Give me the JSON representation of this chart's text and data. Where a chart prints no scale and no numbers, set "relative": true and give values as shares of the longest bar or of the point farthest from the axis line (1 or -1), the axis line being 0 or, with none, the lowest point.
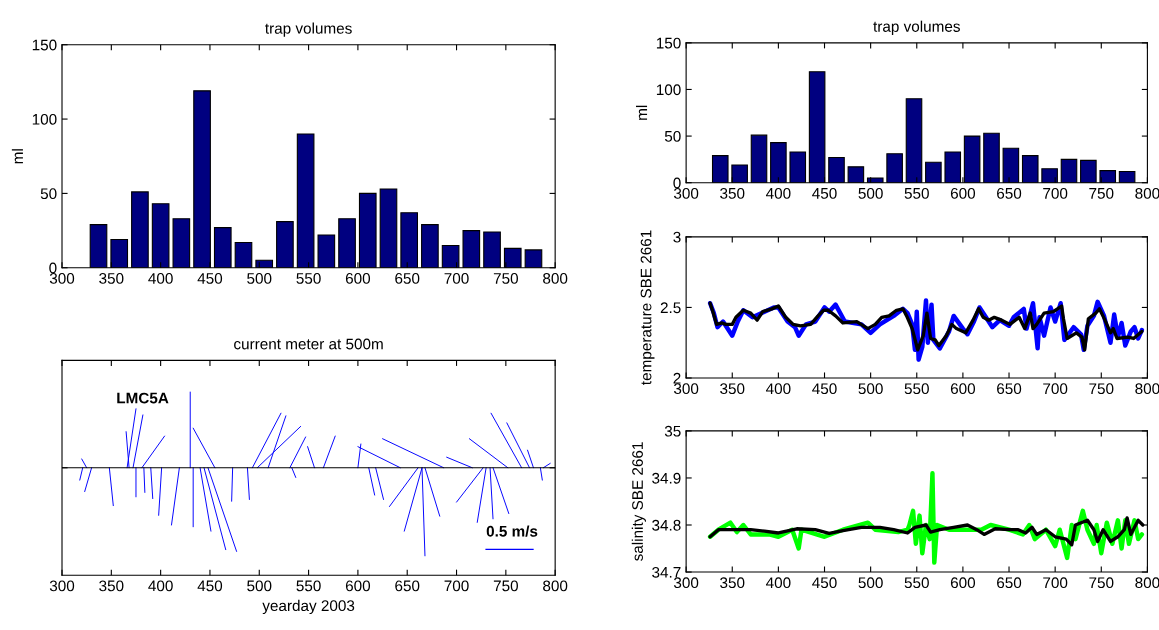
{
  "chart_data": [
    {
      "type": "bar",
      "title": "trap volumes",
      "ylabel": "ml",
      "x": [
        337,
        358,
        379,
        400,
        421,
        442,
        463,
        484,
        505,
        526,
        547,
        568,
        589,
        610,
        631,
        652,
        673,
        694,
        715,
        736,
        757,
        778
      ],
      "values": [
        29,
        19,
        51,
        43,
        33,
        119,
        27,
        17,
        5,
        31,
        90,
        22,
        33,
        50,
        53,
        37,
        29,
        15,
        25,
        24,
        13,
        12
      ],
      "color": "#000080",
      "xlim": [
        300,
        800
      ],
      "xticks": [
        300,
        350,
        400,
        450,
        500,
        550,
        600,
        650,
        700,
        750,
        800
      ],
      "ylim": [
        0,
        150
      ],
      "yticks": [
        0,
        50,
        100,
        150
      ]
    },
    {
      "type": "line",
      "title": "current meter at 500m",
      "xlabel": "yearday 2003",
      "relative": true,
      "annotations": [
        "LMC5A",
        "0.5 m/s"
      ],
      "xlim": [
        300,
        800
      ],
      "xticks": [
        300,
        350,
        400,
        450,
        500,
        550,
        600,
        650,
        700,
        750,
        800
      ],
      "series": [
        {
          "color": "#0000ff",
          "x": [
            321,
            318
          ],
          "values": [
            0,
            -0.14
          ]
        },
        {
          "color": "#0000ff",
          "x": [
            325,
            320
          ],
          "values": [
            0,
            0.1
          ]
        },
        {
          "color": "#0000ff",
          "x": [
            330,
            323
          ],
          "values": [
            0,
            -0.27
          ]
        },
        {
          "color": "#0000ff",
          "x": [
            348,
            352
          ],
          "values": [
            0,
            -0.43
          ]
        },
        {
          "color": "#0000ff",
          "x": [
            366,
            375
          ],
          "values": [
            0,
            0.67
          ]
        },
        {
          "color": "#0000ff",
          "x": [
            368,
            365
          ],
          "values": [
            0,
            0.41
          ]
        },
        {
          "color": "#0000ff",
          "x": [
            372,
            382
          ],
          "values": [
            0,
            0.6
          ]
        },
        {
          "color": "#0000ff",
          "x": [
            375,
            375
          ],
          "values": [
            0,
            -0.33
          ]
        },
        {
          "color": "#0000ff",
          "x": [
            381,
            404
          ],
          "values": [
            0,
            0.36
          ]
        },
        {
          "color": "#0000ff",
          "x": [
            383,
            384
          ],
          "values": [
            0,
            -0.28
          ]
        },
        {
          "color": "#0000ff",
          "x": [
            390,
            392
          ],
          "values": [
            0,
            -0.35
          ]
        },
        {
          "color": "#0000ff",
          "x": [
            401,
            398
          ],
          "values": [
            0,
            -0.54
          ]
        },
        {
          "color": "#0000ff",
          "x": [
            419,
            411
          ],
          "values": [
            0,
            -0.65
          ]
        },
        {
          "color": "#0000ff",
          "x": [
            430,
            430
          ],
          "values": [
            0,
            0.86
          ]
        },
        {
          "color": "#0000ff",
          "x": [
            433,
            433
          ],
          "values": [
            0,
            -0.67
          ]
        },
        {
          "color": "#0000ff",
          "x": [
            440,
            451
          ],
          "values": [
            0,
            -0.72
          ]
        },
        {
          "color": "#0000ff",
          "x": [
            444,
            466
          ],
          "values": [
            0,
            -0.93
          ]
        },
        {
          "color": "#0000ff",
          "x": [
            448,
            477
          ],
          "values": [
            0,
            -0.95
          ]
        },
        {
          "color": "#0000ff",
          "x": [
            455,
            433
          ],
          "values": [
            0,
            0.45
          ]
        },
        {
          "color": "#0000ff",
          "x": [
            473,
            472
          ],
          "values": [
            0,
            -0.38
          ]
        },
        {
          "color": "#0000ff",
          "x": [
            488,
            490
          ],
          "values": [
            0,
            -0.36
          ]
        },
        {
          "color": "#0000ff",
          "x": [
            493,
            522
          ],
          "values": [
            0,
            0.62
          ]
        },
        {
          "color": "#0000ff",
          "x": [
            498,
            542
          ],
          "values": [
            0,
            0.47
          ]
        },
        {
          "color": "#0000ff",
          "x": [
            509,
            527
          ],
          "values": [
            0,
            0.59
          ]
        },
        {
          "color": "#0000ff",
          "x": [
            531,
            547
          ],
          "values": [
            0,
            0.35
          ]
        },
        {
          "color": "#0000ff",
          "x": [
            533,
            537
          ],
          "values": [
            0,
            -0.11
          ]
        },
        {
          "color": "#0000ff",
          "x": [
            565,
            577
          ],
          "values": [
            0,
            0.36
          ]
        },
        {
          "color": "#0000ff",
          "x": [
            556,
            549
          ],
          "values": [
            0,
            0.24
          ]
        },
        {
          "color": "#0000ff",
          "x": [
            600,
            603
          ],
          "values": [
            0,
            0.27
          ]
        },
        {
          "color": "#0000ff",
          "x": [
            611,
            617
          ],
          "values": [
            0,
            -0.31
          ]
        },
        {
          "color": "#0000ff",
          "x": [
            618,
            626
          ],
          "values": [
            0,
            -0.36
          ]
        },
        {
          "color": "#0000ff",
          "x": [
            687,
            625
          ],
          "values": [
            0,
            0.33
          ]
        },
        {
          "color": "#0000ff",
          "x": [
            643,
            600
          ],
          "values": [
            0,
            0.24
          ]
        },
        {
          "color": "#0000ff",
          "x": [
            665,
            647
          ],
          "values": [
            0,
            -0.72
          ]
        },
        {
          "color": "#0000ff",
          "x": [
            665,
            668
          ],
          "values": [
            0,
            -1.0
          ]
        },
        {
          "color": "#0000ff",
          "x": [
            668,
            683
          ],
          "values": [
            0,
            -0.55
          ]
        },
        {
          "color": "#0000ff",
          "x": [
            661,
            632
          ],
          "values": [
            0,
            -0.44
          ]
        },
        {
          "color": "#0000ff",
          "x": [
            727,
            700
          ],
          "values": [
            0,
            -0.39
          ]
        },
        {
          "color": "#0000ff",
          "x": [
            730,
            721
          ],
          "values": [
            0,
            -0.62
          ]
        },
        {
          "color": "#0000ff",
          "x": [
            734,
            737
          ],
          "values": [
            0,
            -0.58
          ]
        },
        {
          "color": "#0000ff",
          "x": [
            737,
            753
          ],
          "values": [
            0,
            -0.52
          ]
        },
        {
          "color": "#0000ff",
          "x": [
            716,
            690
          ],
          "values": [
            0,
            0.12
          ]
        },
        {
          "color": "#0000ff",
          "x": [
            752,
            713
          ],
          "values": [
            0,
            0.33
          ]
        },
        {
          "color": "#0000ff",
          "x": [
            766,
            735
          ],
          "values": [
            0,
            0.62
          ]
        },
        {
          "color": "#0000ff",
          "x": [
            774,
            751
          ],
          "values": [
            0,
            0.51
          ]
        },
        {
          "color": "#0000ff",
          "x": [
            785,
            787
          ],
          "values": [
            0,
            -0.14
          ]
        },
        {
          "color": "#0000ff",
          "x": [
            778,
            772
          ],
          "values": [
            0,
            0.2
          ]
        },
        {
          "color": "#0000ff",
          "x": [
            788,
            795
          ],
          "values": [
            0,
            0.05
          ]
        }
      ]
    },
    {
      "type": "bar",
      "title": "trap volumes",
      "ylabel": "ml",
      "x": [
        337,
        358,
        379,
        400,
        421,
        442,
        463,
        484,
        505,
        526,
        547,
        568,
        589,
        610,
        631,
        652,
        673,
        694,
        715,
        736,
        757,
        778
      ],
      "values": [
        29,
        19,
        51,
        43,
        33,
        119,
        27,
        17,
        5,
        31,
        90,
        22,
        33,
        50,
        53,
        37,
        29,
        15,
        25,
        24,
        13,
        12
      ],
      "color": "#000080",
      "xlim": [
        300,
        800
      ],
      "xticks": [
        300,
        350,
        400,
        450,
        500,
        550,
        600,
        650,
        700,
        750,
        800
      ],
      "ylim": [
        0,
        150
      ],
      "yticks": [
        0,
        50,
        100,
        150
      ]
    },
    {
      "type": "line",
      "ylabel": "temperature SBE 2661",
      "series": [
        {
          "color": "#0000ff",
          "x": [
            326,
            330,
            334,
            340,
            350,
            356,
            362,
            372,
            382,
            395,
            400,
            410,
            418,
            422,
            430,
            440,
            450,
            455,
            462,
            472,
            490,
            500,
            510,
            525,
            535,
            540,
            545,
            548,
            550,
            552,
            556,
            560,
            562,
            566,
            568,
            575,
            585,
            590,
            600,
            605,
            612,
            618,
            625,
            632,
            640,
            650,
            655,
            666,
            669,
            676,
            681,
            683,
            688,
            695,
            700,
            706,
            710,
            720,
            728,
            731,
            735,
            742,
            746,
            753,
            760,
            764,
            768,
            772,
            776,
            782,
            786,
            790,
            794
          ],
          "values": [
            2.53,
            2.46,
            2.36,
            2.4,
            2.3,
            2.4,
            2.48,
            2.43,
            2.46,
            2.5,
            2.5,
            2.4,
            2.36,
            2.3,
            2.38,
            2.4,
            2.5,
            2.47,
            2.52,
            2.4,
            2.38,
            2.32,
            2.38,
            2.44,
            2.49,
            2.46,
            2.38,
            2.2,
            2.47,
            2.13,
            2.22,
            2.55,
            2.25,
            2.52,
            2.27,
            2.21,
            2.33,
            2.44,
            2.35,
            2.31,
            2.4,
            2.5,
            2.43,
            2.36,
            2.41,
            2.37,
            2.43,
            2.49,
            2.35,
            2.53,
            2.21,
            2.43,
            2.3,
            2.5,
            2.4,
            2.53,
            2.27,
            2.36,
            2.31,
            2.2,
            2.37,
            2.44,
            2.54,
            2.44,
            2.25,
            2.45,
            2.29,
            2.39,
            2.23,
            2.33,
            2.36,
            2.28,
            2.34
          ]
        },
        {
          "color": "#000000",
          "x": [
            326,
            329,
            333,
            339,
            343,
            350,
            354,
            362,
            370,
            377,
            383,
            393,
            400,
            408,
            416,
            424,
            435,
            443,
            449,
            454,
            462,
            470,
            485,
            497,
            505,
            512,
            520,
            528,
            535,
            539,
            545,
            551,
            557,
            561,
            565,
            570,
            574,
            582,
            588,
            593,
            603,
            611,
            617,
            622,
            628,
            634,
            642,
            651,
            661,
            667,
            673,
            676,
            680,
            688,
            698,
            707,
            709,
            713,
            723,
            729,
            732,
            736,
            744,
            748,
            754,
            760,
            763,
            767,
            779,
            785,
            794
          ],
          "values": [
            2.53,
            2.47,
            2.38,
            2.39,
            2.38,
            2.38,
            2.43,
            2.48,
            2.46,
            2.41,
            2.47,
            2.49,
            2.51,
            2.43,
            2.38,
            2.37,
            2.38,
            2.44,
            2.48,
            2.48,
            2.44,
            2.39,
            2.4,
            2.35,
            2.38,
            2.43,
            2.44,
            2.48,
            2.49,
            2.44,
            2.35,
            2.2,
            2.3,
            2.46,
            2.28,
            2.27,
            2.23,
            2.3,
            2.38,
            2.35,
            2.32,
            2.41,
            2.49,
            2.43,
            2.41,
            2.43,
            2.41,
            2.38,
            2.43,
            2.35,
            2.46,
            2.35,
            2.38,
            2.46,
            2.47,
            2.51,
            2.42,
            2.28,
            2.32,
            2.29,
            2.2,
            2.42,
            2.46,
            2.49,
            2.41,
            2.32,
            2.35,
            2.28,
            2.29,
            2.28,
            2.33
          ]
        }
      ],
      "xlim": [
        300,
        800
      ],
      "xticks": [
        300,
        350,
        400,
        450,
        500,
        550,
        600,
        650,
        700,
        750,
        800
      ],
      "ylim": [
        2,
        3
      ],
      "yticks": [
        2,
        2.5,
        3
      ]
    },
    {
      "type": "line",
      "ylabel": "salinity SBE 2661",
      "series": [
        {
          "color": "#00ff00",
          "x": [
            326,
            335,
            348,
            355,
            362,
            370,
            390,
            400,
            415,
            422,
            425,
            450,
            470,
            497,
            505,
            530,
            540,
            542,
            546,
            549,
            553,
            556,
            560,
            564,
            567,
            569,
            572,
            585,
            600,
            620,
            630,
            650,
            665,
            672,
            678,
            690,
            700,
            705,
            713,
            718,
            722,
            730,
            735,
            742,
            745,
            750,
            756,
            762,
            768,
            772,
            776,
            780,
            786,
            790,
            794
          ],
          "values": [
            34.775,
            34.79,
            34.805,
            34.785,
            34.8,
            34.78,
            34.78,
            34.775,
            34.79,
            34.75,
            34.79,
            34.775,
            34.79,
            34.805,
            34.79,
            34.785,
            34.79,
            34.8,
            34.83,
            34.76,
            34.82,
            34.74,
            34.8,
            34.77,
            34.91,
            34.72,
            34.8,
            34.79,
            34.79,
            34.79,
            34.8,
            34.79,
            34.78,
            34.8,
            34.77,
            34.79,
            34.755,
            34.79,
            34.73,
            34.8,
            34.77,
            34.83,
            34.79,
            34.76,
            34.8,
            34.74,
            34.805,
            34.76,
            34.81,
            34.75,
            34.81,
            34.76,
            34.81,
            34.77,
            34.78
          ]
        },
        {
          "color": "#000000",
          "x": [
            326,
            335,
            350,
            370,
            385,
            400,
            420,
            440,
            455,
            470,
            490,
            510,
            525,
            540,
            548,
            560,
            565,
            575,
            590,
            605,
            615,
            623,
            635,
            650,
            660,
            668,
            675,
            680,
            690,
            700,
            712,
            718,
            722,
            735,
            742,
            746,
            752,
            760,
            768,
            775,
            778,
            782,
            790,
            795
          ],
          "values": [
            34.775,
            34.79,
            34.79,
            34.79,
            34.787,
            34.783,
            34.792,
            34.79,
            34.782,
            34.788,
            34.795,
            34.795,
            34.79,
            34.783,
            34.795,
            34.8,
            34.785,
            34.79,
            34.795,
            34.8,
            34.79,
            34.78,
            34.792,
            34.79,
            34.79,
            34.783,
            34.795,
            34.78,
            34.79,
            34.775,
            34.77,
            34.758,
            34.8,
            34.81,
            34.79,
            34.765,
            34.79,
            34.765,
            34.775,
            34.79,
            34.815,
            34.78,
            34.81,
            34.8
          ]
        }
      ],
      "xlim": [
        300,
        800
      ],
      "xticks": [
        300,
        350,
        400,
        450,
        500,
        550,
        600,
        650,
        700,
        750,
        800
      ],
      "ylim": [
        34.7,
        35
      ],
      "yticks": [
        34.7,
        34.8,
        34.9,
        35
      ]
    }
  ]
}
